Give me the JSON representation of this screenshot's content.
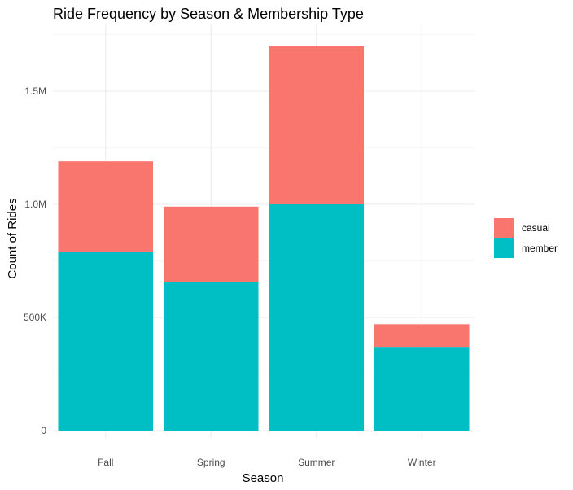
{
  "chart_data": {
    "type": "bar",
    "stacked": true,
    "title": "Ride Frequency by Season & Membership Type",
    "xlabel": "Season",
    "ylabel": "Count of Rides",
    "categories": [
      "Fall",
      "Spring",
      "Summer",
      "Winter"
    ],
    "series": [
      {
        "name": "casual",
        "color": "#F8766D",
        "values": [
          400000,
          335000,
          700000,
          100000
        ]
      },
      {
        "name": "member",
        "color": "#00BFC4",
        "values": [
          790000,
          655000,
          1000000,
          370000
        ]
      }
    ],
    "ylim": [
      0,
      1780000
    ],
    "y_ticks": [
      {
        "value": 0,
        "label": "0"
      },
      {
        "value": 500000,
        "label": "500K"
      },
      {
        "value": 1000000,
        "label": "1.0M"
      },
      {
        "value": 1500000,
        "label": "1.5M"
      }
    ],
    "legend": {
      "position": "right",
      "order": [
        "casual",
        "member"
      ]
    },
    "grid": true
  }
}
